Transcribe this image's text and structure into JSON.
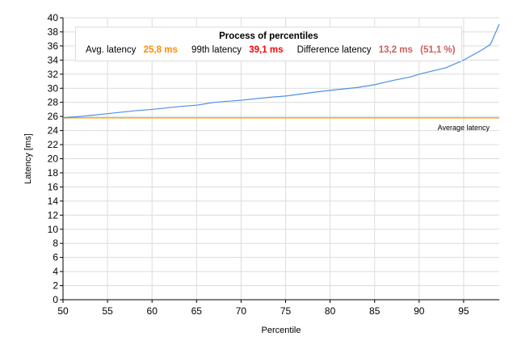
{
  "chart_data": {
    "type": "line",
    "title": "Process of percentiles",
    "xlabel": "Percentile",
    "ylabel": "Latency [ms]",
    "xlim": [
      50,
      99
    ],
    "ylim": [
      0,
      40
    ],
    "xticks": [
      50,
      55,
      60,
      65,
      70,
      75,
      80,
      85,
      90,
      95
    ],
    "yticks": [
      0,
      2,
      4,
      6,
      8,
      10,
      12,
      14,
      16,
      18,
      20,
      22,
      24,
      26,
      28,
      30,
      32,
      34,
      36,
      38,
      40
    ],
    "grid": true,
    "series": [
      {
        "name": "Latency",
        "color": "#4d8fe8",
        "x": [
          50,
          52,
          55,
          58,
          60,
          63,
          65,
          67,
          70,
          73,
          75,
          78,
          80,
          83,
          85,
          87,
          89,
          90,
          92,
          93,
          95,
          96,
          97,
          98,
          99
        ],
        "y": [
          25.8,
          26.0,
          26.4,
          26.8,
          27.0,
          27.4,
          27.6,
          28.0,
          28.3,
          28.7,
          28.9,
          29.4,
          29.7,
          30.1,
          30.5,
          31.1,
          31.6,
          32.0,
          32.6,
          32.9,
          34.0,
          34.7,
          35.4,
          36.2,
          39.1
        ]
      }
    ],
    "reference_line": {
      "label": "Average latency",
      "value": 25.8,
      "color": "#f5a623"
    },
    "legend": {
      "title": "Process of percentiles",
      "avg_label": "Avg. latency",
      "avg_value": "25,8 ms",
      "avg_color": "#ff8c00",
      "p99_label": "99th latency",
      "p99_value": "39,1 ms",
      "p99_color": "#ff0000",
      "diff_label": "Difference latency",
      "diff_value": "13,2 ms",
      "diff_pct": "(51,1 %)",
      "diff_color": "#cd5c5c",
      "placement": "top"
    }
  }
}
